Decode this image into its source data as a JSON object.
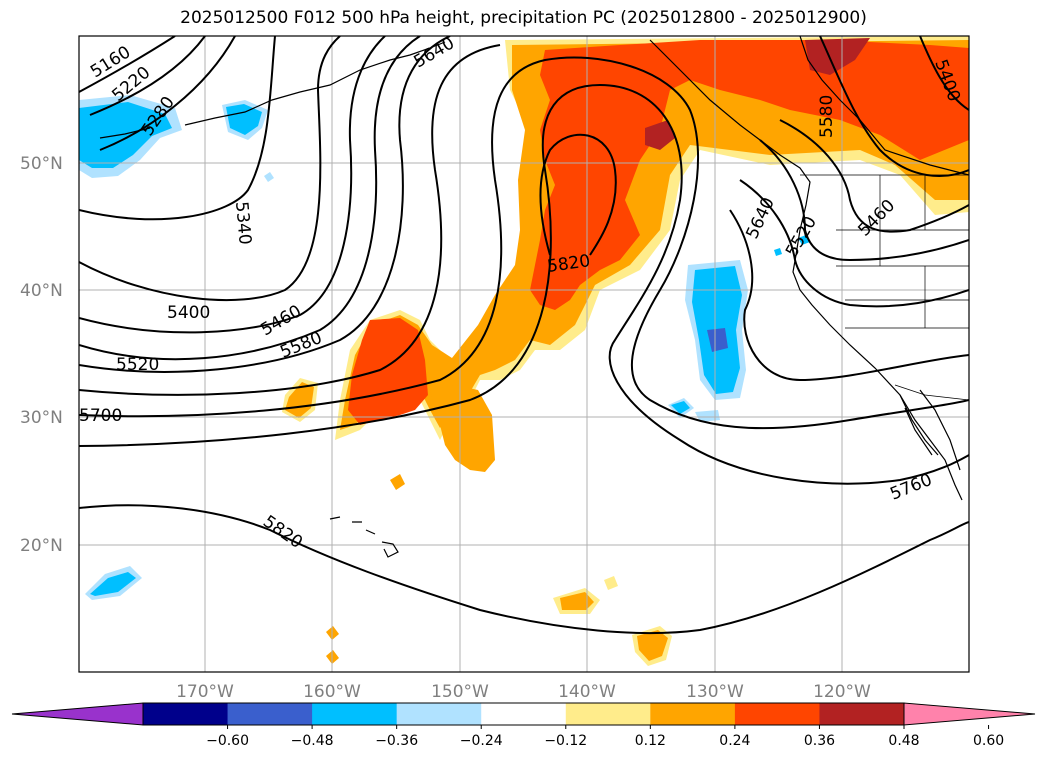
{
  "title": "2025012500 F012 500 hPa height, precipitation PC (2025012800 - 2025012900)",
  "latitude_labels": [
    "50°N",
    "40°N",
    "30°N",
    "20°N"
  ],
  "longitude_labels": [
    "170°W",
    "160°W",
    "150°W",
    "140°W",
    "130°W",
    "120°W"
  ],
  "contour_labels": [
    "5160",
    "5220",
    "5280",
    "5340",
    "5400",
    "5460",
    "5520",
    "5580",
    "5640",
    "5700",
    "5760",
    "5820",
    "5820",
    "5400",
    "5460",
    "5520",
    "5580",
    "5640"
  ],
  "colorbar": {
    "ticks": [
      "−0.60",
      "−0.48",
      "−0.36",
      "−0.24",
      "−0.12",
      "0.12",
      "0.24",
      "0.36",
      "0.48",
      "0.60"
    ],
    "colors": [
      "#9932cc",
      "#00008b",
      "#3a5fcd",
      "#00bfff",
      "#b0e2ff",
      "#ffffff",
      "#ffec8b",
      "#ffa500",
      "#ff4500",
      "#b22222",
      "#ff82ab"
    ]
  }
}
